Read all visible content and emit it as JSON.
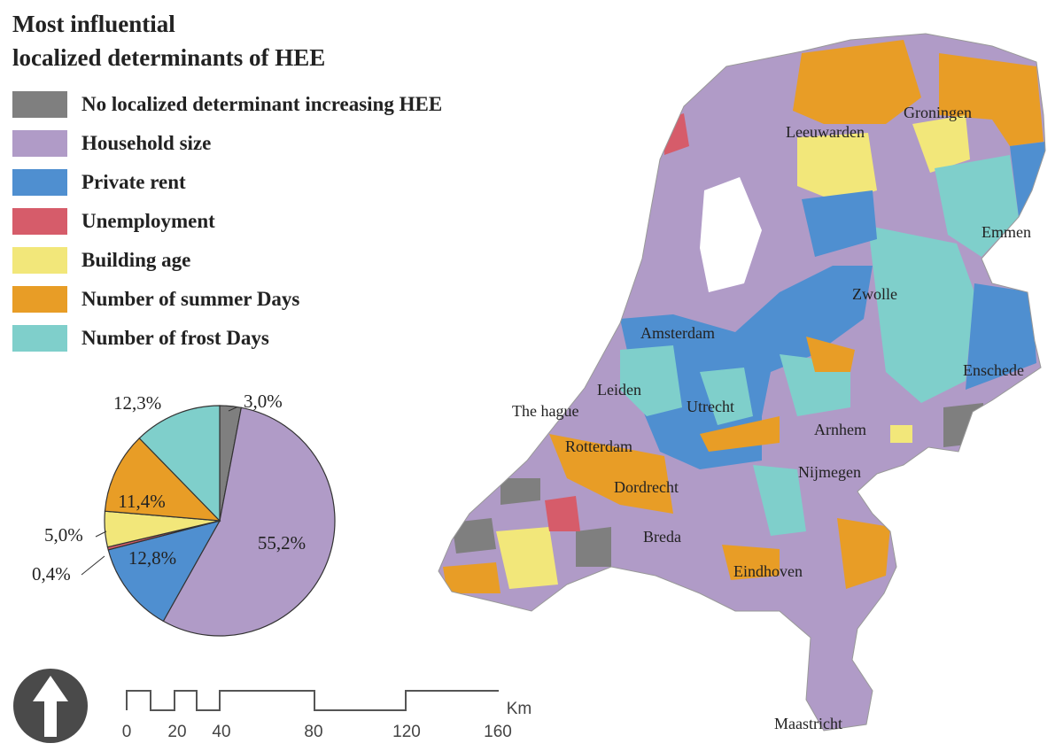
{
  "title": {
    "line1": "Most influential",
    "line2": "localized determinants of HEE"
  },
  "legend": [
    {
      "label": "No localized determinant increasing HEE",
      "color": "#7f7f7f"
    },
    {
      "label": "Household size",
      "color": "#b09bc7"
    },
    {
      "label": "Private rent",
      "color": "#4f8fd0"
    },
    {
      "label": "Unemployment",
      "color": "#d65c6a"
    },
    {
      "label": "Building age",
      "color": "#f2e77a"
    },
    {
      "label": "Number of summer Days",
      "color": "#e89d26"
    },
    {
      "label": "Number of frost Days",
      "color": "#7fcfcb"
    }
  ],
  "chart_data": {
    "type": "pie",
    "slices": [
      {
        "name": "No localized determinant increasing HEE",
        "value": 3.0,
        "label": "3,0%",
        "color": "#7f7f7f"
      },
      {
        "name": "Household size",
        "value": 55.2,
        "label": "55,2%",
        "color": "#b09bc7"
      },
      {
        "name": "Private rent",
        "value": 12.8,
        "label": "12,8%",
        "color": "#4f8fd0"
      },
      {
        "name": "Unemployment",
        "value": 0.4,
        "label": "0,4%",
        "color": "#d65c6a"
      },
      {
        "name": "Building age",
        "value": 5.0,
        "label": "5,0%",
        "color": "#f2e77a"
      },
      {
        "name": "Number of summer Days",
        "value": 11.4,
        "label": "11,4%",
        "color": "#e89d26"
      },
      {
        "name": "Number of frost Days",
        "value": 12.3,
        "label": "12,3%",
        "color": "#7fcfcb"
      }
    ]
  },
  "cities": [
    "Leeuwarden",
    "Groningen",
    "Emmen",
    "Zwolle",
    "Amsterdam",
    "Enschede",
    "Leiden",
    "The hague",
    "Utrecht",
    "Arnhem",
    "Rotterdam",
    "Nijmegen",
    "Dordrecht",
    "Breda",
    "Eindhoven",
    "Maastricht"
  ],
  "scale_bar": {
    "unit": "Km",
    "ticks": [
      "0",
      "20",
      "40",
      "80",
      "120",
      "160"
    ]
  },
  "north_arrow": "north-arrow-icon"
}
